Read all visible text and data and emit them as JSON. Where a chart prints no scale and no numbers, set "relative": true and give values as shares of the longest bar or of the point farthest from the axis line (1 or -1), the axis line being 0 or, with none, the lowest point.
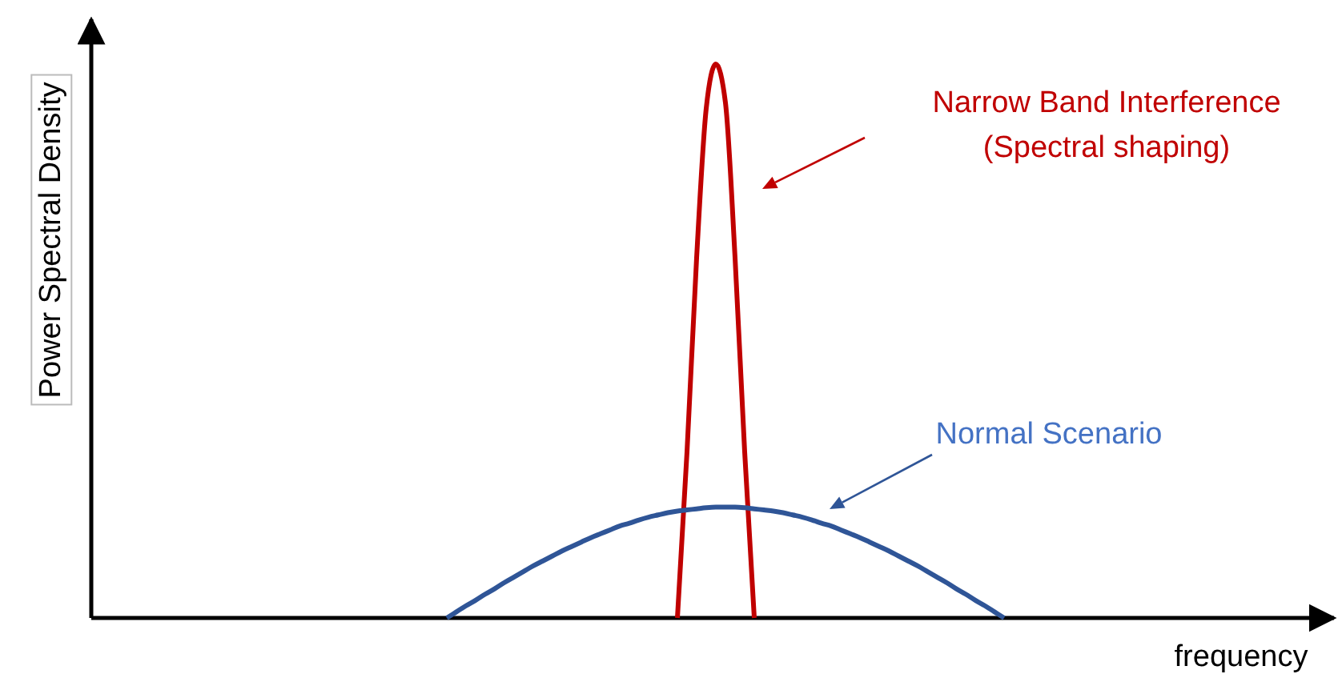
{
  "chart_data": {
    "type": "line",
    "relative": true,
    "xlabel": "frequency",
    "ylabel": "Power Spectral Density",
    "marker": "none",
    "line_style": "solid",
    "categories": [
      null,
      null,
      null,
      null,
      null,
      null,
      null,
      null,
      null,
      null,
      null,
      null,
      null,
      null,
      null,
      null,
      null,
      null,
      null,
      null,
      null,
      null,
      null,
      null,
      null,
      null,
      null,
      null,
      null,
      null,
      null,
      null,
      null,
      null,
      null,
      null,
      null,
      null,
      null,
      null,
      null,
      null,
      null,
      null,
      null,
      null,
      null,
      null,
      null,
      null,
      null,
      null,
      null,
      null,
      null,
      null,
      null,
      null,
      null,
      null,
      null,
      null,
      null,
      null,
      null,
      null,
      null,
      null,
      null,
      null,
      null,
      null,
      null,
      null,
      null,
      null,
      null,
      null,
      null,
      null,
      null,
      null,
      null,
      null,
      null,
      null,
      null,
      null,
      null,
      null,
      null,
      null,
      null,
      null,
      null,
      null,
      null,
      null,
      null,
      null,
      null,
      null,
      null,
      null,
      null,
      null,
      null,
      null,
      null,
      null,
      null,
      null,
      null,
      null,
      null,
      null,
      null,
      null,
      null,
      null,
      null,
      null,
      null,
      null,
      null,
      null,
      null,
      null,
      null
    ],
    "series": [
      {
        "color": "#c00000",
        "values": [
          null,
          null,
          null,
          null,
          null,
          null,
          null,
          null,
          null,
          null,
          null,
          null,
          null,
          null,
          null,
          null,
          null,
          null,
          null,
          null,
          null,
          null,
          null,
          null,
          null,
          null,
          null,
          null,
          null,
          null,
          null,
          null,
          null,
          null,
          null,
          null,
          null,
          null,
          null,
          null,
          null,
          null,
          null,
          null,
          null,
          null,
          null,
          null,
          null,
          null,
          null,
          null,
          null,
          null,
          null,
          null,
          null,
          null,
          null,
          null,
          null,
          0,
          0.3,
          0.65,
          0.92,
          1,
          0.93,
          0.65,
          0.3,
          0,
          null,
          null,
          null,
          null,
          null,
          null,
          null,
          null,
          null,
          null,
          null,
          null,
          null,
          null,
          null,
          null,
          null,
          null,
          null,
          null,
          null,
          null,
          null,
          null,
          null,
          null,
          null,
          null,
          null,
          null,
          null,
          null,
          null,
          null,
          null,
          null,
          null,
          null,
          null,
          null,
          null,
          null,
          null,
          null,
          null,
          null,
          null,
          null,
          null,
          null,
          null,
          null,
          null,
          null,
          null,
          null,
          null,
          null,
          null
        ]
      },
      {
        "color": "#2f5597",
        "values": [
          null,
          null,
          null,
          null,
          null,
          null,
          null,
          null,
          null,
          null,
          null,
          null,
          null,
          null,
          null,
          null,
          null,
          null,
          null,
          null,
          null,
          null,
          null,
          null,
          null,
          null,
          null,
          null,
          null,
          null,
          null,
          null,
          null,
          null,
          null,
          null,
          null,
          0,
          0.011,
          0.022,
          0.032,
          0.043,
          0.053,
          0.064,
          0.074,
          0.084,
          0.094,
          0.103,
          0.112,
          0.121,
          0.129,
          0.137,
          0.145,
          0.152,
          0.159,
          0.166,
          0.171,
          0.177,
          0.182,
          0.186,
          0.19,
          0.193,
          0.195,
          0.197,
          0.199,
          0.2,
          0.2,
          0.2,
          0.199,
          0.197,
          0.195,
          0.193,
          0.19,
          0.186,
          0.182,
          0.177,
          0.171,
          0.166,
          0.159,
          0.152,
          0.145,
          0.137,
          0.129,
          0.121,
          0.112,
          0.103,
          0.094,
          0.084,
          0.074,
          0.064,
          0.053,
          0.043,
          0.032,
          0.022,
          0.011,
          0,
          null,
          null,
          null,
          null,
          null,
          null,
          null,
          null,
          null,
          null,
          null,
          null,
          null,
          null,
          null,
          null,
          null,
          null,
          null,
          null,
          null,
          null,
          null,
          null,
          null,
          null,
          null,
          null,
          null,
          null,
          null,
          null,
          null
        ]
      }
    ],
    "annotations": [
      "Narrow Band Interference\n(Spectral shaping)",
      "Normal Scenario"
    ]
  }
}
